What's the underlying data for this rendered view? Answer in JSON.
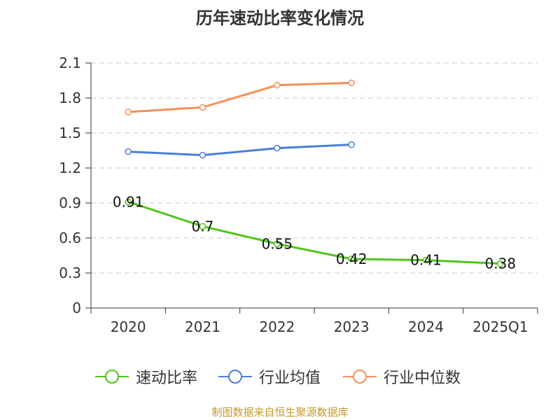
{
  "title": "历年速动比率变化情况",
  "source": "制图数据来自恒生聚源数据库",
  "chart_data": {
    "type": "line",
    "title": "历年速动比率变化情况",
    "categories": [
      "2020",
      "2021",
      "2022",
      "2023",
      "2024",
      "2025Q1"
    ],
    "ylim": [
      0,
      2.1
    ],
    "yticks": [
      "0",
      "0.3",
      "0.6",
      "0.9",
      "1.2",
      "1.5",
      "1.8",
      "2.1"
    ],
    "grid": true,
    "legend_position": "bottom",
    "series": [
      {
        "name": "速动比率",
        "color": "#52c41a",
        "values": [
          0.91,
          0.7,
          0.55,
          0.42,
          0.41,
          0.38
        ],
        "labels": [
          "0.91",
          "0.7",
          "0.55",
          "0.42",
          "0.41",
          "0.38"
        ],
        "show_labels": true
      },
      {
        "name": "行业均值",
        "color": "#4a7fd6",
        "values": [
          1.34,
          1.31,
          1.37,
          1.4,
          null,
          null
        ],
        "show_labels": false
      },
      {
        "name": "行业中位数",
        "color": "#f58f58",
        "values": [
          1.68,
          1.72,
          1.91,
          1.93,
          null,
          null
        ],
        "show_labels": false
      }
    ]
  }
}
